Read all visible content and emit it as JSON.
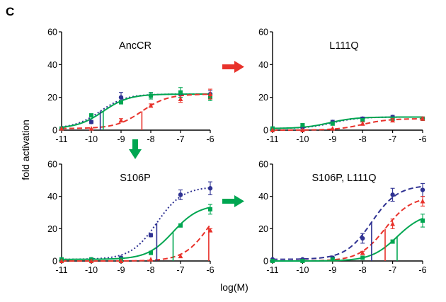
{
  "figure": {
    "panel_letter": "C",
    "ylabel": "fold activation",
    "xlabel": "log(M)"
  },
  "colors": {
    "blue": "#2e3192",
    "red": "#e8322b",
    "green": "#00a651",
    "down_arrow": "#00a651",
    "right_arrow_top": "#e8322b",
    "right_arrow_bottom": "#00a651"
  },
  "chart_data": [
    {
      "type": "line",
      "title": "AncCR",
      "xlim": [
        -11,
        -6
      ],
      "ylim": [
        0,
        60
      ],
      "x_ticks": [
        "-11",
        "-10",
        "-9",
        "-8",
        "-7",
        "-6"
      ],
      "y_ticks": [
        "0",
        "20",
        "40",
        "60"
      ],
      "series": [
        {
          "color": "blue",
          "dash": "2,3",
          "x": [
            -11,
            -10,
            -9,
            -8,
            -7,
            -6
          ],
          "y": [
            1,
            5,
            20,
            21,
            22,
            22
          ],
          "err": [
            0,
            1,
            3,
            2,
            2,
            2
          ],
          "marker": "circle",
          "curve": {
            "bottom": 1,
            "top": 22,
            "logec50": -9.7,
            "hill": 1.0
          }
        },
        {
          "color": "green",
          "dash": "",
          "x": [
            -11,
            -10,
            -9,
            -8,
            -7,
            -6
          ],
          "y": [
            1,
            9,
            17,
            21,
            23,
            20
          ],
          "err": [
            0,
            1,
            1,
            2,
            3,
            2
          ],
          "marker": "square",
          "curve": {
            "bottom": 1,
            "top": 22,
            "logec50": -9.6,
            "hill": 1.0
          }
        },
        {
          "color": "red",
          "dash": "7,4",
          "x": [
            -11,
            -10,
            -9,
            -8,
            -7,
            -6
          ],
          "y": [
            1,
            1,
            6,
            15,
            19,
            22
          ],
          "err": [
            0,
            0,
            1,
            1,
            2,
            3
          ],
          "marker": "triangle",
          "curve": {
            "bottom": 1,
            "top": 22,
            "logec50": -8.3,
            "hill": 1.0
          }
        }
      ],
      "ec50_lines": [
        {
          "color": "blue",
          "x": -9.7
        },
        {
          "color": "green",
          "x": -9.6
        },
        {
          "color": "red",
          "x": -8.3
        }
      ]
    },
    {
      "type": "line",
      "title": "L111Q",
      "xlim": [
        -11,
        -6
      ],
      "ylim": [
        0,
        60
      ],
      "x_ticks": [
        "-11",
        "-10",
        "-9",
        "-8",
        "-7",
        "-6"
      ],
      "y_ticks": [
        "0",
        "20",
        "40",
        "60"
      ],
      "series": [
        {
          "color": "blue",
          "dash": "2,3",
          "x": [
            -11,
            -10,
            -9,
            -8,
            -7,
            -6
          ],
          "y": [
            1,
            2,
            5,
            7,
            8,
            7
          ],
          "err": [
            0,
            1,
            1,
            1,
            1,
            1
          ],
          "marker": "circle",
          "curve": {
            "bottom": 1,
            "top": 8,
            "logec50": -9.0,
            "hill": 1.0
          }
        },
        {
          "color": "green",
          "dash": "",
          "x": [
            -11,
            -10,
            -9,
            -8,
            -7,
            -6
          ],
          "y": [
            1,
            3,
            4,
            6,
            7,
            7
          ],
          "err": [
            0,
            1,
            1,
            1,
            1,
            1
          ],
          "marker": "square",
          "curve": {
            "bottom": 1,
            "top": 8,
            "logec50": -9.1,
            "hill": 1.0
          }
        },
        {
          "color": "red",
          "dash": "7,4",
          "x": [
            -11,
            -10,
            -9,
            -8,
            -7,
            -6
          ],
          "y": [
            0,
            0,
            1,
            4,
            6,
            7
          ],
          "err": [
            0,
            0,
            0,
            1,
            1,
            1
          ],
          "marker": "triangle",
          "curve": {
            "bottom": 0,
            "top": 7,
            "logec50": -8.0,
            "hill": 1.0
          }
        }
      ],
      "ec50_lines": []
    },
    {
      "type": "line",
      "title": "S106P",
      "xlim": [
        -11,
        -6
      ],
      "ylim": [
        0,
        60
      ],
      "x_ticks": [
        "-11",
        "-10",
        "-9",
        "-8",
        "-7",
        "-6"
      ],
      "y_ticks": [
        "0",
        "20",
        "40",
        "60"
      ],
      "series": [
        {
          "color": "blue",
          "dash": "2,3",
          "x": [
            -11,
            -10,
            -9,
            -8,
            -7,
            -6
          ],
          "y": [
            1,
            1,
            2,
            16,
            41,
            45
          ],
          "err": [
            0,
            0,
            0,
            1,
            3,
            4
          ],
          "marker": "circle",
          "curve": {
            "bottom": 1,
            "top": 46,
            "logec50": -7.8,
            "hill": 1.0
          }
        },
        {
          "color": "green",
          "dash": "",
          "x": [
            -11,
            -10,
            -9,
            -8,
            -7,
            -6
          ],
          "y": [
            1,
            1,
            1,
            5,
            22,
            32
          ],
          "err": [
            0,
            0,
            0,
            1,
            1,
            3
          ],
          "marker": "square",
          "curve": {
            "bottom": 1,
            "top": 35,
            "logec50": -7.25,
            "hill": 1.0
          }
        },
        {
          "color": "red",
          "dash": "7,4",
          "x": [
            -11,
            -10,
            -9,
            -8,
            -7,
            -6
          ],
          "y": [
            0,
            0,
            0,
            1,
            3,
            19
          ],
          "err": [
            0,
            0,
            0,
            0,
            0,
            1
          ],
          "marker": "triangle",
          "curve": {
            "bottom": 0,
            "top": 45,
            "logec50": -6.0,
            "hill": 1.0
          }
        }
      ],
      "ec50_lines": [
        {
          "color": "blue",
          "x": -7.8
        },
        {
          "color": "green",
          "x": -7.25
        },
        {
          "color": "red",
          "x": -6.05
        }
      ]
    },
    {
      "type": "line",
      "title": "S106P, L111Q",
      "xlim": [
        -11,
        -6
      ],
      "ylim": [
        0,
        60
      ],
      "x_ticks": [
        "-11",
        "-10",
        "-9",
        "-8",
        "-7",
        "-6"
      ],
      "y_ticks": [
        "0",
        "20",
        "40",
        "60"
      ],
      "series": [
        {
          "color": "blue",
          "dash": "7,4",
          "x": [
            -11,
            -10,
            -9,
            -8,
            -7,
            -6
          ],
          "y": [
            1,
            1,
            2,
            14,
            41,
            44
          ],
          "err": [
            0,
            0,
            0,
            3,
            4,
            4
          ],
          "marker": "circle",
          "curve": {
            "bottom": 1,
            "top": 47,
            "logec50": -7.7,
            "hill": 1.0
          }
        },
        {
          "color": "red",
          "dash": "7,4",
          "x": [
            -11,
            -10,
            -9,
            -8,
            -7,
            -6
          ],
          "y": [
            0,
            0,
            1,
            5,
            23,
            37
          ],
          "err": [
            0,
            0,
            0,
            1,
            3,
            3
          ],
          "marker": "triangle",
          "curve": {
            "bottom": 0,
            "top": 40,
            "logec50": -7.25,
            "hill": 1.0
          }
        },
        {
          "color": "green",
          "dash": "",
          "x": [
            -11,
            -10,
            -9,
            -8,
            -7,
            -6
          ],
          "y": [
            0,
            0,
            1,
            2,
            12,
            25
          ],
          "err": [
            0,
            0,
            0,
            0,
            1,
            4
          ],
          "marker": "square",
          "curve": {
            "bottom": 0,
            "top": 30,
            "logec50": -6.85,
            "hill": 1.0
          }
        }
      ],
      "ec50_lines": [
        {
          "color": "blue",
          "x": -7.7
        },
        {
          "color": "red",
          "x": -7.25
        },
        {
          "color": "green",
          "x": -6.85
        }
      ]
    }
  ]
}
